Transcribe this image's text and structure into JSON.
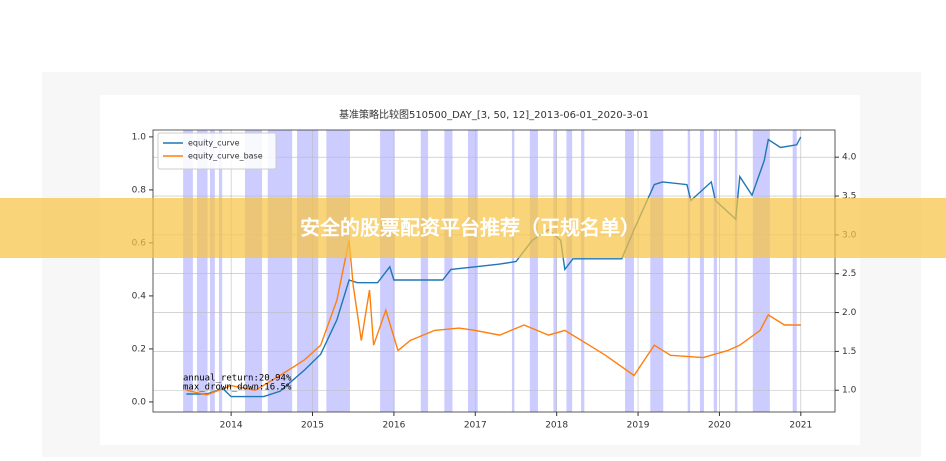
{
  "banner": "安全的股票配资平台推荐（正规名单）",
  "chart_data": {
    "type": "line",
    "title": "基准策略比较图510500_DAY_[3, 50, 12]_2013-06-01_2020-3-01",
    "annotations": [
      "annual_return:20.94%",
      "max_drown_down:16.5%"
    ],
    "xlim": [
      2013.04,
      2021.42
    ],
    "xticks": [
      2014,
      2015,
      2016,
      2017,
      2018,
      2019,
      2020,
      2021
    ],
    "ylim": [
      -0.038,
      1.026
    ],
    "yticks": [
      {
        "value": 0,
        "label": "0.0"
      },
      0.2,
      0.4,
      0.6,
      0.8,
      {
        "value": 1,
        "label": "1.0"
      }
    ],
    "y2lim": [
      0.72,
      4.35
    ],
    "y2ticks": [
      {
        "value": 1,
        "label": "1.0"
      },
      1.5,
      {
        "value": 2,
        "label": "2.0"
      },
      2.5,
      {
        "value": 3,
        "label": "3.0"
      },
      3.5,
      {
        "value": 4,
        "label": "4.0"
      }
    ],
    "legend": "upper left",
    "span_color": "#0000ff",
    "spans": [
      [
        2013.41,
        2013.53
      ],
      [
        2013.58,
        2013.71
      ],
      [
        2013.74,
        2013.8
      ],
      [
        2013.85,
        2013.89
      ],
      [
        2014.17,
        2014.38
      ],
      [
        2014.45,
        2014.75
      ],
      [
        2014.81,
        2015.07
      ],
      [
        2015.17,
        2015.46
      ],
      [
        2015.83,
        2016.01
      ],
      [
        2016.33,
        2016.42
      ],
      [
        2016.62,
        2016.72
      ],
      [
        2016.91,
        2017.03
      ],
      [
        2017.45,
        2017.48
      ],
      [
        2017.67,
        2017.77
      ],
      [
        2017.96,
        2018.0
      ],
      [
        2018.12,
        2018.19
      ],
      [
        2018.3,
        2018.34
      ],
      [
        2018.84,
        2018.95
      ],
      [
        2019.15,
        2019.31
      ],
      [
        2019.61,
        2019.64
      ],
      [
        2019.76,
        2019.81
      ],
      [
        2019.93,
        2019.97
      ],
      [
        2020.19,
        2020.22
      ],
      [
        2020.41,
        2020.62
      ],
      [
        2020.9,
        2020.95
      ]
    ],
    "series": [
      {
        "name": "equity_curve",
        "color": "#1f77b4",
        "x": [
          2013.45,
          2013.7,
          2013.9,
          2014.0,
          2014.4,
          2014.6,
          2014.9,
          2015.1,
          2015.3,
          2015.45,
          2015.55,
          2015.8,
          2015.95,
          2016.0,
          2016.6,
          2016.7,
          2017.0,
          2017.3,
          2017.5,
          2017.7,
          2017.9,
          2018.05,
          2018.1,
          2018.2,
          2018.8,
          2018.95,
          2019.2,
          2019.3,
          2019.6,
          2019.65,
          2019.9,
          2019.95,
          2020.2,
          2020.25,
          2020.4,
          2020.55,
          2020.6,
          2020.75,
          2020.95,
          2021.0
        ],
        "values": [
          0.03,
          0.03,
          0.05,
          0.02,
          0.02,
          0.04,
          0.12,
          0.18,
          0.31,
          0.46,
          0.45,
          0.45,
          0.51,
          0.46,
          0.46,
          0.5,
          0.51,
          0.52,
          0.53,
          0.61,
          0.65,
          0.61,
          0.5,
          0.54,
          0.54,
          0.65,
          0.82,
          0.83,
          0.82,
          0.76,
          0.83,
          0.76,
          0.69,
          0.85,
          0.78,
          0.91,
          0.99,
          0.96,
          0.97,
          1.0
        ]
      },
      {
        "name": "equity_curve_base",
        "color": "#ff7f0e",
        "axis": "y2",
        "x": [
          2013.45,
          2013.7,
          2014.0,
          2014.3,
          2014.6,
          2014.9,
          2015.1,
          2015.3,
          2015.45,
          2015.5,
          2015.6,
          2015.7,
          2015.75,
          2015.9,
          2016.05,
          2016.2,
          2016.5,
          2016.8,
          2017.0,
          2017.3,
          2017.6,
          2017.9,
          2018.1,
          2018.4,
          2018.6,
          2018.95,
          2019.2,
          2019.4,
          2019.8,
          2020.1,
          2020.25,
          2020.5,
          2020.6,
          2020.8,
          2021.0
        ],
        "values": [
          1.0,
          0.94,
          1.06,
          1.0,
          1.19,
          1.39,
          1.58,
          2.16,
          2.93,
          2.35,
          1.64,
          2.29,
          1.58,
          2.03,
          1.51,
          1.64,
          1.77,
          1.8,
          1.77,
          1.71,
          1.84,
          1.71,
          1.77,
          1.58,
          1.45,
          1.19,
          1.58,
          1.45,
          1.42,
          1.51,
          1.58,
          1.77,
          1.97,
          1.84,
          1.84
        ]
      }
    ]
  }
}
